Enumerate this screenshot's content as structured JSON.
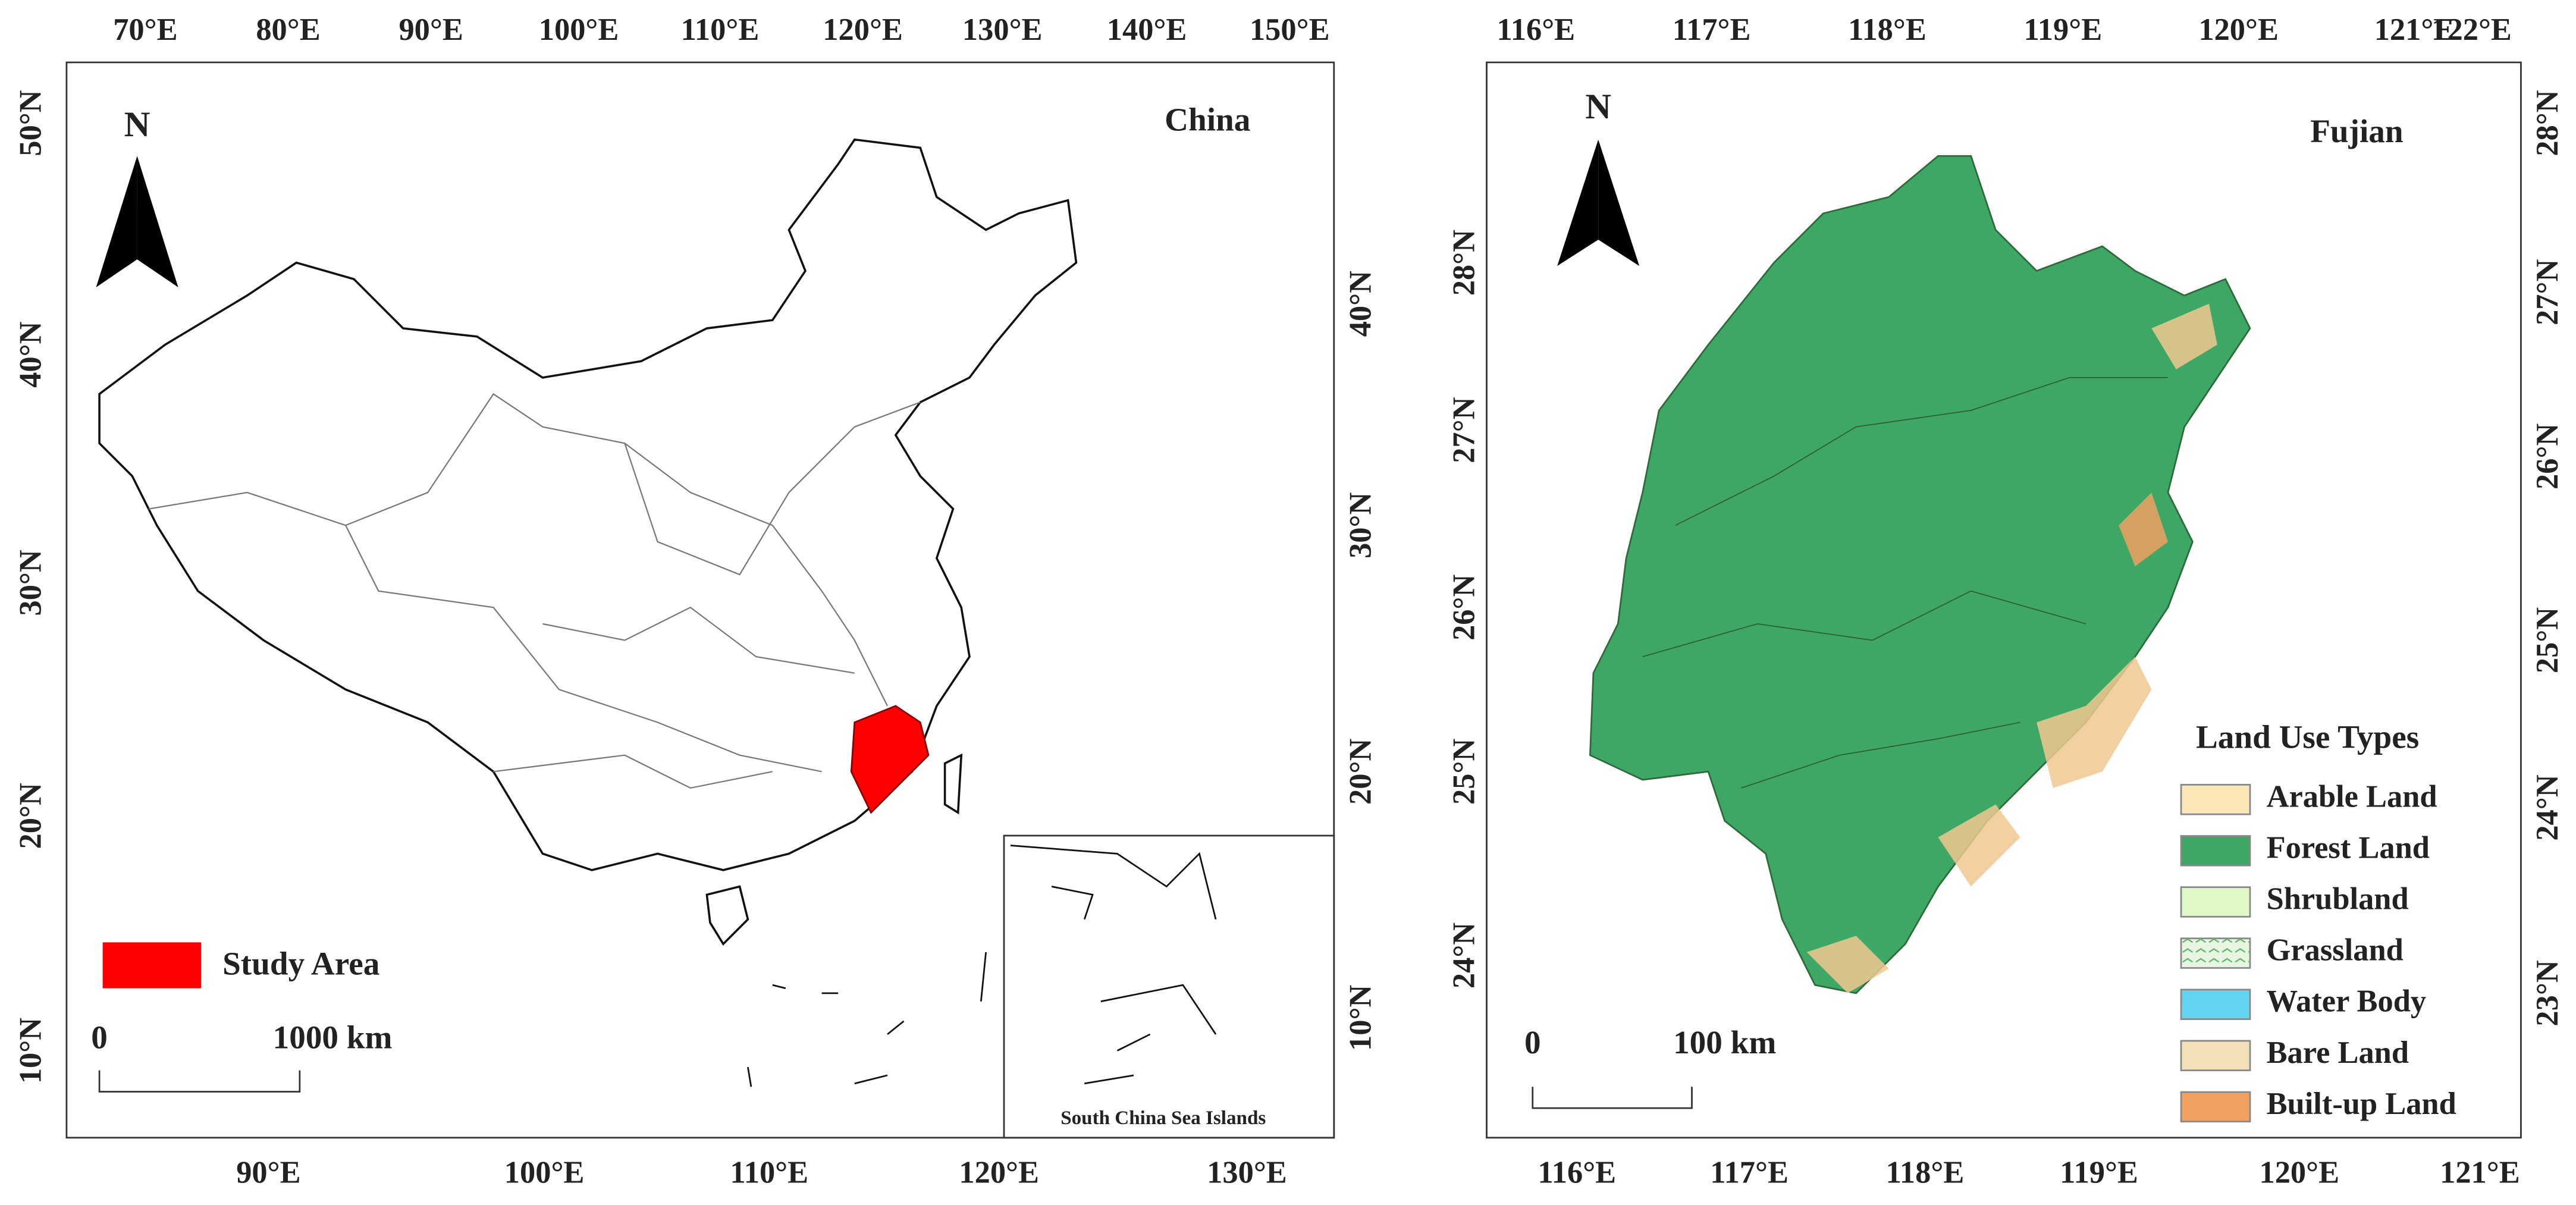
{
  "china_map": {
    "title": "China",
    "north": "N",
    "top_ticks": [
      "70°E",
      "80°E",
      "90°E",
      "100°E",
      "110°E",
      "120°E",
      "130°E",
      "140°E",
      "150°E"
    ],
    "bottom_ticks": [
      "90°E",
      "100°E",
      "110°E",
      "120°E",
      "130°E"
    ],
    "left_ticks": [
      "50°N",
      "40°N",
      "30°N",
      "20°N",
      "10°N"
    ],
    "right_ticks": [
      "40°N",
      "30°N",
      "20°N",
      "10°N"
    ],
    "legend": {
      "label": "Study Area"
    },
    "scale_bar": {
      "start": "0",
      "end": "1000 km"
    },
    "inset": {
      "label": "South China Sea Islands"
    }
  },
  "fujian_map": {
    "title": "Fujian",
    "north": "N",
    "top_ticks": [
      "116°E",
      "117°E",
      "118°E",
      "119°E",
      "120°E",
      "121°E",
      "122°E"
    ],
    "bottom_ticks": [
      "116°E",
      "117°E",
      "118°E",
      "119°E",
      "120°E",
      "121°E"
    ],
    "left_ticks": [
      "28°N",
      "27°N",
      "26°N",
      "25°N",
      "24°N"
    ],
    "right_ticks": [
      "28°N",
      "27°N",
      "26°N",
      "25°N",
      "24°N",
      "23°N"
    ],
    "legend": {
      "title": "Land Use Types",
      "items": [
        {
          "label": "Arable Land",
          "color": "#fbe6b5"
        },
        {
          "label": "Forest Land",
          "color": "#3fa766"
        },
        {
          "label": "Shrubland",
          "color": "#e0f8c5"
        },
        {
          "label": "Grassland",
          "color": "#e8f5e0"
        },
        {
          "label": "Water Body",
          "color": "#62d3f0"
        },
        {
          "label": "Bare Land",
          "color": "#f3e0b8"
        },
        {
          "label": "Built-up Land",
          "color": "#f0a060"
        }
      ]
    },
    "scale_bar": {
      "start": "0",
      "end": "100 km"
    }
  }
}
